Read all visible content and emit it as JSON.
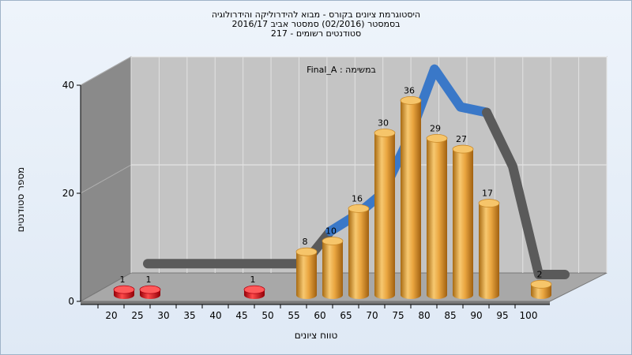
{
  "chart_data": {
    "type": "bar",
    "title_lines": [
      "היסטוגרמת ציונים בקורס - מבוא להידרוליקה והידרולוגיה",
      "בסמסטר  (02/2016)  סמסטר אביב 2016/17",
      "סטודנטים רשומים - 217"
    ],
    "annotation": "Final_A : במשימה",
    "xlabel": "טווח ציונים",
    "ylabel": "מספר סטודנטים",
    "categories": [
      "20",
      "25",
      "30",
      "35",
      "40",
      "45",
      "50",
      "55",
      "60",
      "65",
      "70",
      "75",
      "80",
      "85",
      "90",
      "95",
      "100"
    ],
    "values": [
      1,
      1,
      0,
      0,
      0,
      1,
      0,
      8,
      10,
      16,
      30,
      36,
      29,
      27,
      17,
      0,
      2
    ],
    "bar_colors": [
      "#e0101a",
      "#e0101a",
      "#e0101a",
      "#e0101a",
      "#e0101a",
      "#e0101a",
      "#f0a030",
      "#f0a030",
      "#f0a030",
      "#f0a030",
      "#f0a030",
      "#f0a030",
      "#f0a030",
      "#f0a030",
      "#f0a030",
      "#f0a030",
      "#f0a030"
    ],
    "curve": [
      2,
      2,
      2,
      2,
      2,
      2,
      2,
      8,
      11,
      15,
      25,
      38,
      31,
      30,
      20,
      0,
      0
    ],
    "curve_colors": [
      "#3a78c8",
      "#5a5a5a"
    ],
    "yticks": [
      0,
      20,
      40
    ],
    "ylim": [
      0,
      40
    ],
    "grid": true
  }
}
